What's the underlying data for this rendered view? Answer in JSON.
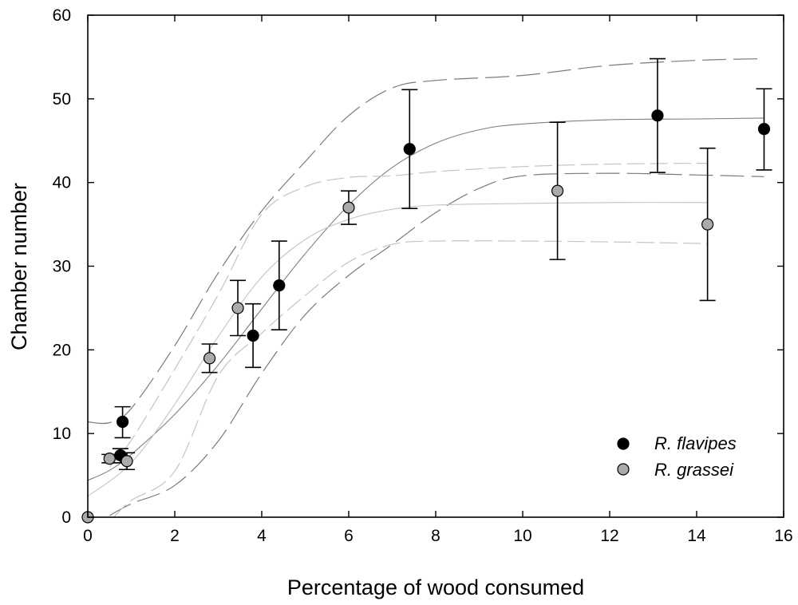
{
  "chart_data": {
    "type": "scatter",
    "xlabel": "Percentage of wood consumed",
    "ylabel": "Chamber number",
    "xlim": [
      0,
      16
    ],
    "ylim": [
      0,
      60
    ],
    "x_ticks": [
      0,
      2,
      4,
      6,
      8,
      10,
      12,
      14,
      16
    ],
    "y_ticks": [
      0,
      10,
      20,
      30,
      40,
      50,
      60
    ],
    "grid": false,
    "legend_position": "bottom-right",
    "series": [
      {
        "name": "R. flavipes",
        "marker_color": "#000000",
        "points": [
          {
            "x": 0.75,
            "y": 7.4,
            "err_low": 6.5,
            "err_high": 8.2
          },
          {
            "x": 0.8,
            "y": 11.4,
            "err_low": 9.5,
            "err_high": 13.2
          },
          {
            "x": 3.8,
            "y": 21.7,
            "err_low": 17.9,
            "err_high": 25.5
          },
          {
            "x": 4.4,
            "y": 27.7,
            "err_low": 22.4,
            "err_high": 33.0
          },
          {
            "x": 7.4,
            "y": 44.0,
            "err_low": 36.9,
            "err_high": 51.1
          },
          {
            "x": 13.1,
            "y": 48.0,
            "err_low": 41.2,
            "err_high": 54.8
          },
          {
            "x": 15.55,
            "y": 46.4,
            "err_low": 41.5,
            "err_high": 51.2
          }
        ],
        "fit": {
          "x": [
            0,
            0.5,
            1,
            2,
            3,
            4,
            5,
            6,
            7,
            8,
            9,
            10,
            12,
            14,
            15.55
          ],
          "y": [
            4.4,
            5.6,
            7.5,
            12.3,
            18.2,
            24.9,
            31.5,
            37.3,
            41.8,
            44.7,
            46.3,
            47.0,
            47.5,
            47.6,
            47.7
          ]
        },
        "ci_upper": {
          "x": [
            0,
            0.5,
            1,
            2,
            3,
            4,
            5,
            6,
            7,
            8,
            10,
            12,
            14,
            15.55
          ],
          "y": [
            11.4,
            11.3,
            13.0,
            20.5,
            29.2,
            36.6,
            42.5,
            48.0,
            51.3,
            52.2,
            52.8,
            54.0,
            54.6,
            54.8
          ]
        },
        "ci_lower": {
          "x": [
            0.5,
            1,
            2,
            3,
            4,
            5,
            6,
            7,
            8,
            9,
            10,
            12,
            14,
            15.55
          ],
          "y": [
            0.2,
            1.6,
            3.8,
            9.1,
            17.2,
            24.2,
            28.9,
            32.6,
            36.4,
            39.3,
            40.8,
            41.1,
            40.9,
            40.7
          ]
        }
      },
      {
        "name": "R. grassei",
        "marker_color": "#aaaaaa",
        "points": [
          {
            "x": 0.0,
            "y": 0.0,
            "err_low": null,
            "err_high": null
          },
          {
            "x": 0.5,
            "y": 7.0,
            "err_low": 6.5,
            "err_high": 7.5
          },
          {
            "x": 0.9,
            "y": 6.7,
            "err_low": 5.7,
            "err_high": 7.7
          },
          {
            "x": 2.8,
            "y": 19.0,
            "err_low": 17.3,
            "err_high": 20.7
          },
          {
            "x": 3.45,
            "y": 25.0,
            "err_low": 21.7,
            "err_high": 28.3
          },
          {
            "x": 6.0,
            "y": 37.0,
            "err_low": 35.0,
            "err_high": 39.0
          },
          {
            "x": 10.8,
            "y": 39.0,
            "err_low": 30.8,
            "err_high": 47.2
          },
          {
            "x": 14.25,
            "y": 35.0,
            "err_low": 25.9,
            "err_high": 44.1
          }
        ],
        "fit": {
          "x": [
            0,
            1,
            2,
            3,
            4,
            5,
            6,
            7,
            8,
            10,
            12,
            14.25
          ],
          "y": [
            2.5,
            6.5,
            13.5,
            21.6,
            28.7,
            33.2,
            35.6,
            36.8,
            37.3,
            37.5,
            37.6,
            37.6
          ]
        },
        "ci_upper": {
          "x": [
            0.5,
            1,
            2,
            3,
            4,
            5,
            6,
            7,
            8,
            10,
            12,
            14.25
          ],
          "y": [
            6.0,
            9.2,
            17.7,
            26.6,
            36.2,
            39.5,
            40.6,
            40.8,
            41.3,
            41.9,
            42.2,
            42.3
          ]
        },
        "ci_lower": {
          "x": [
            0.6,
            1,
            2,
            3,
            4,
            5,
            6,
            7,
            8,
            10,
            12,
            14.25
          ],
          "y": [
            0.0,
            2.0,
            5.5,
            16.9,
            22.0,
            26.5,
            30.5,
            32.6,
            33.0,
            33.0,
            32.9,
            32.7
          ]
        }
      }
    ]
  }
}
